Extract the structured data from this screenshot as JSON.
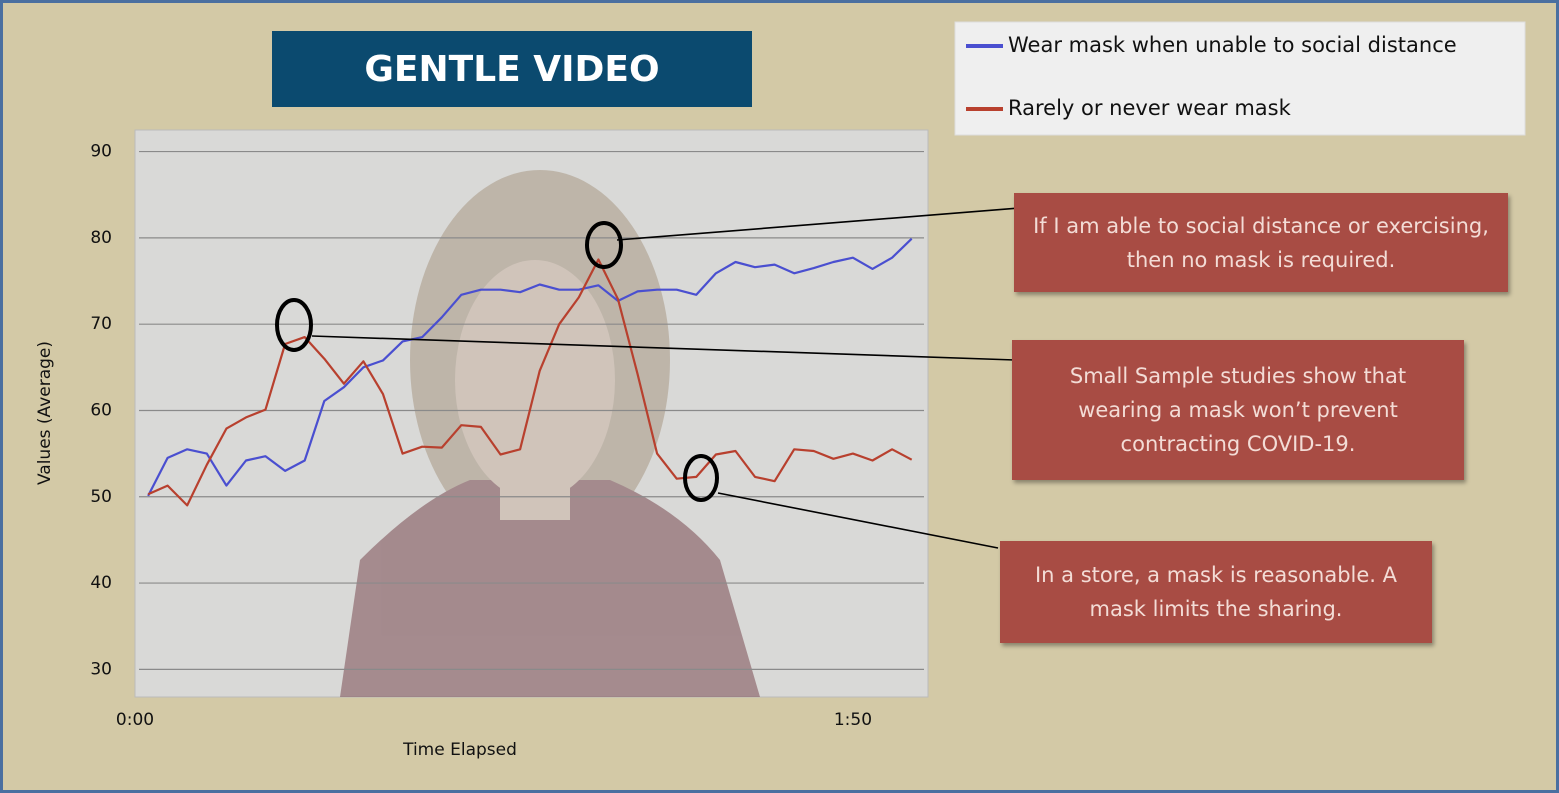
{
  "chart_data": {
    "type": "line",
    "title": "GENTLE VIDEO",
    "xlabel": "Time Elapsed",
    "ylabel": "Values (Average)",
    "x": [
      2,
      5,
      8,
      11,
      14,
      17,
      20,
      23,
      26,
      29,
      32,
      35,
      38,
      41,
      44,
      47,
      50,
      53,
      56,
      59,
      62,
      65,
      68,
      71,
      74,
      77,
      80,
      83,
      86,
      89,
      92,
      95,
      98,
      101,
      104,
      107,
      110,
      113,
      116,
      119
    ],
    "xlim": [
      0,
      121.5
    ],
    "xticks": [
      {
        "value": 0,
        "label": "0:00"
      },
      {
        "value": 110,
        "label": "1:50"
      }
    ],
    "ylim": [
      26.8,
      92.5
    ],
    "yticks": [
      90,
      80,
      70,
      60,
      50,
      40,
      30
    ],
    "grid": true,
    "legend": "upper right",
    "series": [
      {
        "name": "Wear mask when unable to social distance",
        "color": "#4a4fd0",
        "values": [
          50.1,
          54.5,
          55.5,
          55.0,
          51.3,
          54.2,
          54.7,
          53.0,
          54.2,
          61.1,
          62.7,
          65.0,
          65.8,
          68.0,
          68.5,
          70.8,
          73.4,
          74.0,
          74.0,
          73.7,
          74.6,
          74.0,
          74.0,
          74.5,
          72.7,
          73.8,
          74.0,
          74.0,
          73.4,
          75.9,
          77.2,
          76.6,
          76.9,
          75.9,
          76.5,
          77.2,
          77.7,
          76.4,
          77.7,
          79.9
        ]
      },
      {
        "name": "Rarely or never wear mask",
        "color": "#b8402e",
        "values": [
          50.3,
          51.3,
          49.0,
          53.7,
          57.9,
          59.2,
          60.1,
          67.7,
          68.5,
          66.0,
          63.1,
          65.7,
          61.9,
          55.0,
          55.8,
          55.7,
          58.3,
          58.1,
          54.9,
          55.5,
          64.6,
          70.0,
          73.1,
          77.5,
          72.9,
          64.2,
          55.0,
          52.1,
          52.3,
          54.9,
          55.3,
          52.3,
          51.8,
          55.5,
          55.3,
          54.4,
          55.0,
          54.2,
          55.5,
          54.3
        ]
      }
    ],
    "annotations": [
      "If I am able to social distance or exercising, then no mask is required.",
      "Small Sample studies show that wearing a mask won’t prevent contracting COVID-19.",
      "In a store, a mask is reasonable. A mask limits the sharing."
    ]
  }
}
